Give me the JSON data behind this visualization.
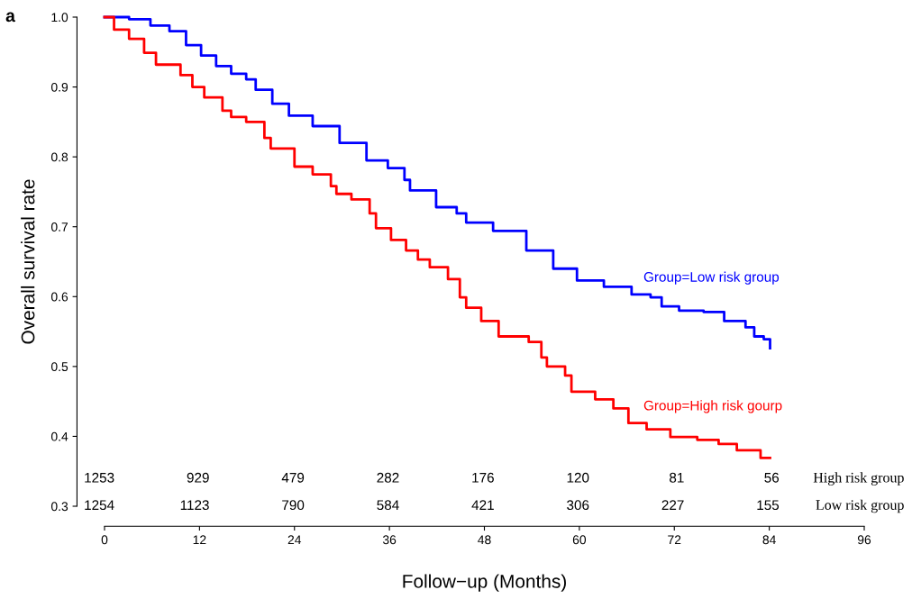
{
  "chart_data": {
    "type": "step",
    "xlabel": "Follow−up (Months)",
    "ylabel": "Overall survival rate",
    "xlim": [
      0,
      96
    ],
    "xticks": [
      0,
      12,
      24,
      36,
      48,
      60,
      72,
      84,
      96
    ],
    "ylim": [
      0.3,
      1.0
    ],
    "yticks": [
      0.3,
      0.4,
      0.5,
      0.6,
      0.7,
      0.8,
      0.9,
      {
        "value": 1.0,
        "label": "1.0"
      }
    ],
    "grid": false,
    "legend": false,
    "line_style": "solid",
    "marker": "none",
    "series": [
      {
        "name": "Group=Low risk group",
        "color": "#0000ff",
        "x": [
          0,
          3.1,
          5.8,
          8.2,
          10.3,
          12.2,
          14.1,
          16.0,
          17.9,
          19.1,
          21.2,
          23.3,
          26.3,
          29.7,
          33.1,
          35.8,
          37.9,
          38.6,
          41.9,
          44.5,
          45.7,
          49.1,
          53.3,
          56.7,
          59.7,
          63.1,
          66.6,
          69.0,
          70.4,
          72.6,
          75.7,
          78.3,
          81.0,
          82.1,
          83.3,
          84.1
        ],
        "values": [
          1.0,
          0.997,
          0.988,
          0.98,
          0.96,
          0.945,
          0.93,
          0.919,
          0.911,
          0.896,
          0.876,
          0.859,
          0.844,
          0.82,
          0.795,
          0.784,
          0.767,
          0.752,
          0.728,
          0.719,
          0.706,
          0.694,
          0.666,
          0.64,
          0.623,
          0.614,
          0.603,
          0.599,
          0.586,
          0.58,
          0.578,
          0.565,
          0.556,
          0.543,
          0.539,
          0.526
        ]
      },
      {
        "name": "Group=High risk gourp",
        "color": "#ff0000",
        "x": [
          0,
          1.2,
          3.1,
          5.0,
          6.5,
          9.6,
          11.1,
          12.6,
          14.9,
          16.0,
          17.9,
          20.2,
          21.0,
          24.0,
          26.3,
          28.6,
          29.3,
          31.2,
          33.5,
          34.3,
          36.2,
          38.1,
          39.6,
          41.1,
          43.4,
          44.9,
          45.7,
          47.6,
          49.8,
          53.6,
          55.2,
          55.9,
          58.2,
          59.0,
          62.0,
          64.3,
          66.2,
          68.5,
          71.5,
          74.9,
          77.6,
          79.9,
          82.9,
          84.1
        ],
        "values": [
          1.0,
          0.982,
          0.969,
          0.949,
          0.932,
          0.917,
          0.9,
          0.885,
          0.866,
          0.857,
          0.85,
          0.827,
          0.812,
          0.786,
          0.775,
          0.758,
          0.747,
          0.739,
          0.719,
          0.698,
          0.681,
          0.666,
          0.653,
          0.642,
          0.625,
          0.599,
          0.584,
          0.565,
          0.543,
          0.535,
          0.513,
          0.5,
          0.487,
          0.464,
          0.453,
          0.44,
          0.419,
          0.41,
          0.399,
          0.395,
          0.389,
          0.38,
          0.369,
          0.369
        ]
      }
    ],
    "annotations": [
      "a",
      "1253",
      "929",
      "479",
      "282",
      "176",
      "120",
      "81",
      "56",
      "High risk group",
      "1254",
      "1123",
      "790",
      "584",
      "421",
      "306",
      "227",
      "155",
      "Low risk group"
    ]
  }
}
